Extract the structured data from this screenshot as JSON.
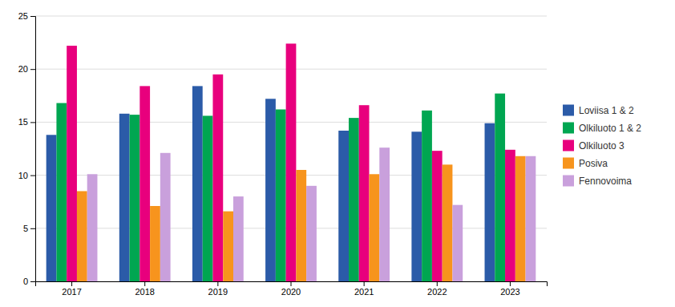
{
  "chart_data": {
    "type": "bar",
    "categories": [
      "2017",
      "2018",
      "2019",
      "2020",
      "2021",
      "2022",
      "2023"
    ],
    "series": [
      {
        "name": "Loviisa 1 & 2",
        "color": "#2B5BA8",
        "values": [
          13.8,
          15.8,
          18.4,
          17.2,
          14.2,
          14.1,
          14.9
        ]
      },
      {
        "name": "Olkiluoto 1 & 2",
        "color": "#00A651",
        "values": [
          16.8,
          15.7,
          15.6,
          16.2,
          15.4,
          16.1,
          17.7
        ]
      },
      {
        "name": "Olkiluoto 3",
        "color": "#E8007D",
        "values": [
          22.2,
          18.4,
          19.5,
          22.4,
          16.6,
          12.3,
          12.4
        ]
      },
      {
        "name": "Posiva",
        "color": "#F7941D",
        "values": [
          8.5,
          7.1,
          6.6,
          10.5,
          10.1,
          11.0,
          11.8
        ]
      },
      {
        "name": "Fennovoima",
        "color": "#C9A0DC",
        "values": [
          10.1,
          12.1,
          8.0,
          9.0,
          12.6,
          7.2,
          11.8
        ]
      }
    ],
    "ylim": [
      0,
      25
    ],
    "yticks": [
      0,
      5,
      10,
      15,
      20,
      25
    ],
    "grid": true,
    "legend": "right"
  }
}
